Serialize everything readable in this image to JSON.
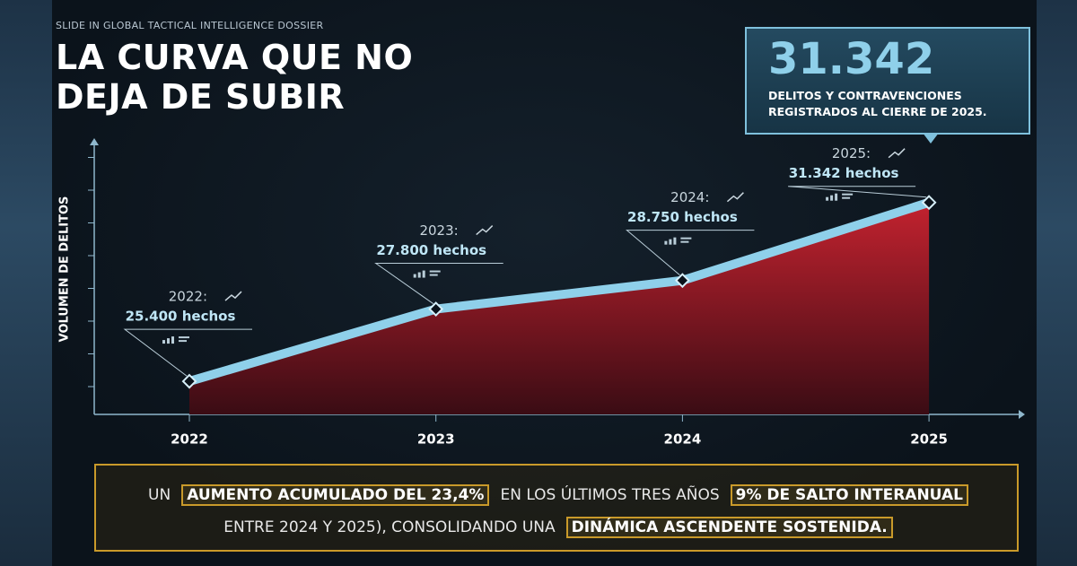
{
  "header": "SLIDE IN GLOBAL TACTICAL INTELLIGENCE DOSSIER",
  "title_lines": [
    "LA CURVA QUE NO",
    "DEJA DE SUBIR"
  ],
  "callout": {
    "number": "31.342",
    "lines": [
      "DELITOS Y CONTRAVENCIONES",
      "REGISTRADOS AL CIERRE DE 2025."
    ]
  },
  "chart_data": {
    "type": "area",
    "y_label": "VOLUMEN DE DELITOS",
    "categories": [
      "2022",
      "2023",
      "2024",
      "2025"
    ],
    "point_labels": [
      "2022:",
      "2023:",
      "2024:",
      "2025:"
    ],
    "values": [
      25400,
      27800,
      28750,
      31342
    ],
    "value_labels": [
      "25.400 hechos",
      "27.800 hechos",
      "28.750 hechos",
      "31.342 hechos"
    ],
    "line_color": "#8fd0ea",
    "fill_color": "#b5202e",
    "ylim": [
      24300,
      33300
    ]
  },
  "footer_lines": [
    [
      {
        "text": "UN",
        "highlight": false
      },
      {
        "text": "AUMENTO ACUMULADO DEL 23,4%",
        "highlight": true
      },
      {
        "text": "EN LOS ÚLTIMOS TRES AÑOS",
        "highlight": false
      },
      {
        "text": "9% DE SALTO INTERANUAL",
        "highlight": true
      }
    ],
    [
      {
        "text": "ENTRE 2024 Y 2025), CONSOLIDANDO UNA",
        "highlight": false
      },
      {
        "text": "DINÁMICA ASCENDENTE SOSTENIDA.",
        "highlight": true
      }
    ]
  ]
}
